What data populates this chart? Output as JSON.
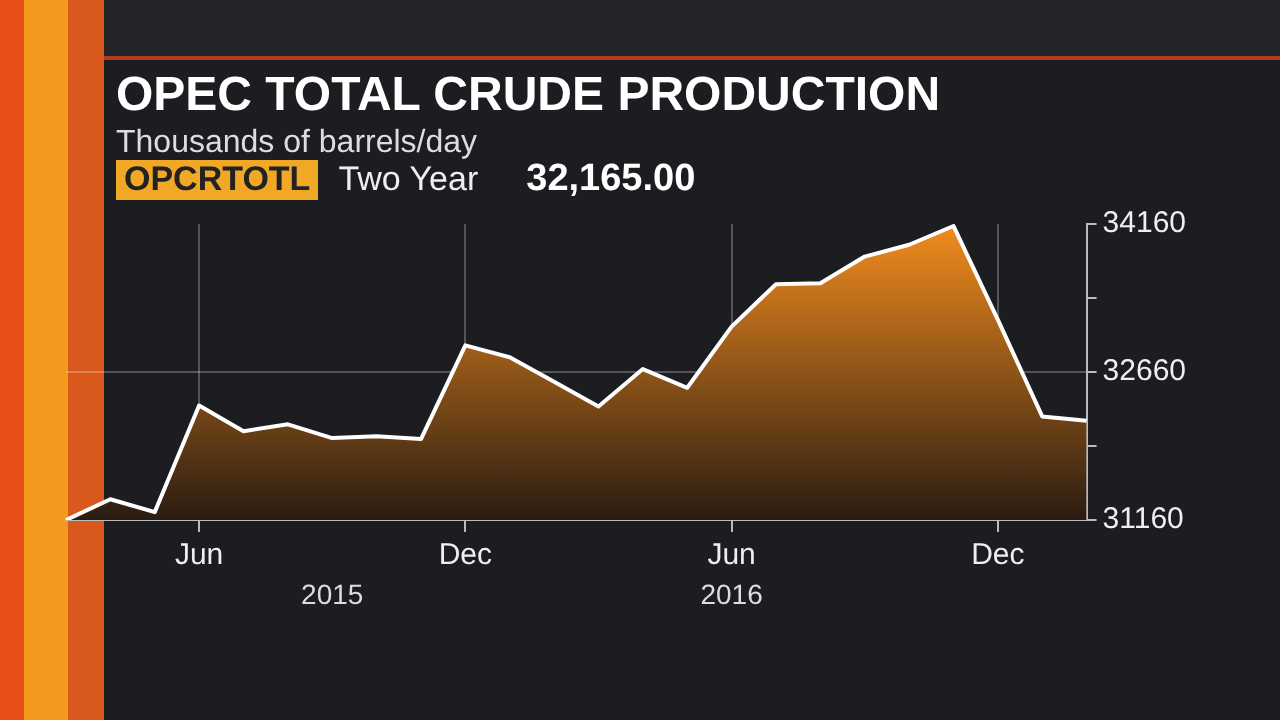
{
  "chart_data": {
    "type": "area",
    "title": "OPEC TOTAL CRUDE PRODUCTION",
    "subtitle": "Thousands of barrels/day",
    "categories": [
      null,
      null,
      null,
      "Jun",
      null,
      null,
      null,
      null,
      null,
      "Dec",
      null,
      null,
      null,
      null,
      null,
      "Jun",
      null,
      null,
      null,
      null,
      null,
      "Dec",
      null,
      null
    ],
    "series": [
      {
        "color": "#f28c1e",
        "values": [
          31160,
          31370,
          31240,
          32320,
          32060,
          32130,
          31990,
          32010,
          31980,
          32930,
          32810,
          32560,
          32310,
          32690,
          32500,
          33120,
          33550,
          33560,
          33830,
          33950,
          34140,
          33190,
          32210,
          32165
        ]
      }
    ],
    "ylim": [
      31160,
      34160
    ],
    "yticks": [
      31160,
      {
        "value": 31910,
        "label": null
      },
      32660,
      {
        "value": 33410,
        "label": null
      },
      34160
    ],
    "grid": true,
    "legend": false,
    "annotations": [
      "OPCRTOTL",
      "Two Year",
      "32,165.00",
      "2015",
      "2016"
    ]
  }
}
